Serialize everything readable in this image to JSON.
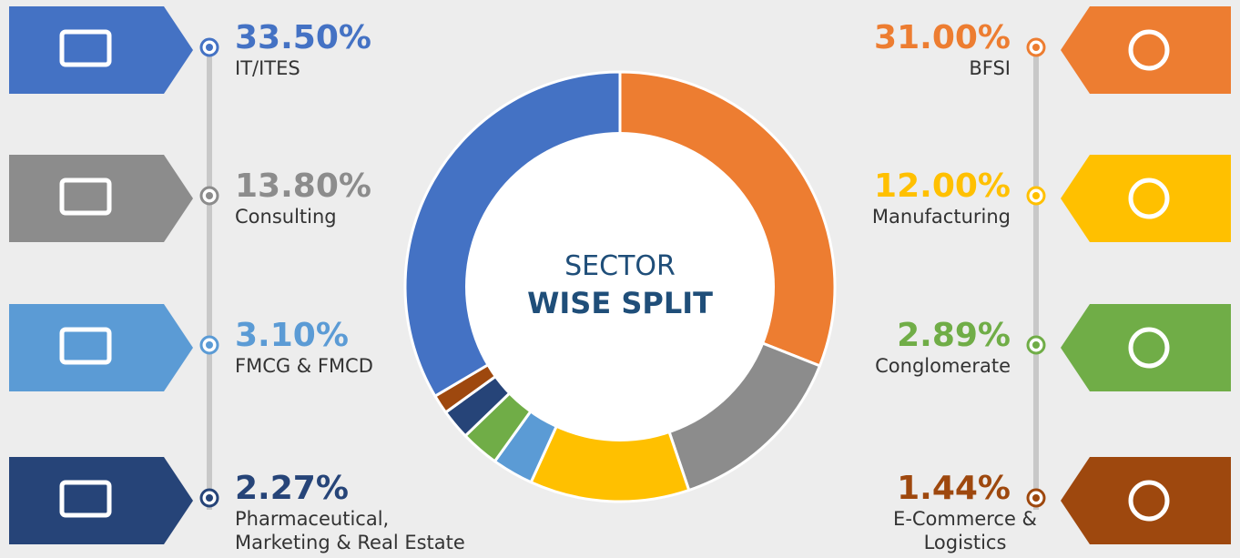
{
  "chart_data": {
    "type": "donut",
    "title": "SECTOR",
    "subtitle": "WISE SPLIT",
    "categories": [
      "BFSI",
      "Consulting",
      "Manufacturing",
      "FMCG & FMCD",
      "Conglomerate",
      "Pharmaceutical,\nMarketing & Real Estate",
      "E-Commerce &\nLogistics",
      "IT/ITES"
    ],
    "values": [
      31.0,
      13.8,
      12.0,
      3.1,
      2.89,
      2.27,
      1.44,
      33.5
    ],
    "value_labels": [
      "31.00%",
      "13.80%",
      "12.00%",
      "3.10%",
      "2.89%",
      "2.27%",
      "1.44%",
      "33.50%"
    ],
    "colors": [
      "#ed7d31",
      "#8c8c8c",
      "#ffc000",
      "#5b9bd5",
      "#70ad47",
      "#264478",
      "#9e480e",
      "#4472c4"
    ]
  }
}
